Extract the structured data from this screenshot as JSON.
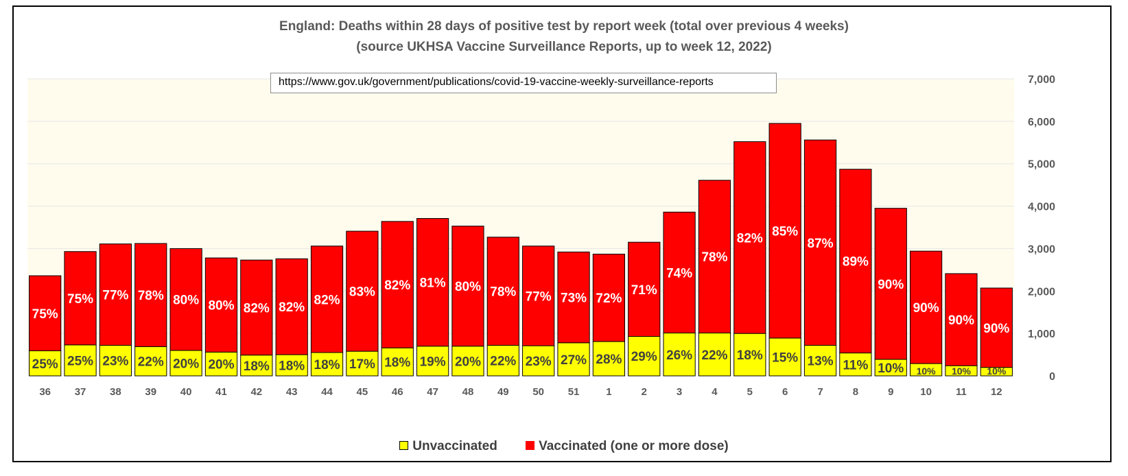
{
  "title_line1": "England: Deaths within 28 days of positive test by report week (total over previous 4 weeks)",
  "title_line2": "(source UKHSA Vaccine Surveillance Reports, up to week 12, 2022)",
  "source_url": "https://www.gov.uk/government/publications/covid-19-vaccine-weekly-surveillance-reports",
  "colors": {
    "unvaccinated": "#ffff00",
    "vaccinated": "#ff0000",
    "plot_background": "#fffcee",
    "gridline": "#e6e6e6"
  },
  "legend": {
    "unvaccinated": "Unvaccinated",
    "vaccinated": "Vaccinated (one or more dose)"
  },
  "chart_data": {
    "type": "bar",
    "stacked": true,
    "categories": [
      "36",
      "37",
      "38",
      "39",
      "40",
      "41",
      "42",
      "43",
      "44",
      "45",
      "46",
      "47",
      "48",
      "49",
      "50",
      "51",
      "1",
      "2",
      "3",
      "4",
      "5",
      "6",
      "7",
      "8",
      "9",
      "10",
      "11",
      "12"
    ],
    "series": [
      {
        "name": "Unvaccinated",
        "values": [
          590,
          730,
          720,
          690,
          600,
          560,
          490,
          500,
          550,
          580,
          660,
          700,
          700,
          720,
          710,
          780,
          810,
          930,
          1010,
          1010,
          1000,
          890,
          720,
          540,
          390,
          290,
          240,
          200
        ],
        "labels": [
          "25%",
          "25%",
          "23%",
          "22%",
          "20%",
          "20%",
          "18%",
          "18%",
          "18%",
          "17%",
          "18%",
          "19%",
          "20%",
          "22%",
          "23%",
          "27%",
          "28%",
          "29%",
          "26%",
          "22%",
          "18%",
          "15%",
          "13%",
          "11%",
          "10%",
          "10%",
          "10%",
          "10%"
        ]
      },
      {
        "name": "Vaccinated (one or more dose)",
        "values": [
          1770,
          2200,
          2390,
          2430,
          2400,
          2220,
          2240,
          2260,
          2510,
          2830,
          2980,
          3010,
          2830,
          2550,
          2350,
          2140,
          2060,
          2220,
          2850,
          3600,
          4520,
          5060,
          4840,
          4330,
          3560,
          2650,
          2170,
          1870
        ],
        "labels": [
          "75%",
          "75%",
          "77%",
          "78%",
          "80%",
          "80%",
          "82%",
          "82%",
          "82%",
          "83%",
          "82%",
          "81%",
          "80%",
          "78%",
          "77%",
          "73%",
          "72%",
          "71%",
          "74%",
          "78%",
          "82%",
          "85%",
          "87%",
          "89%",
          "90%",
          "90%",
          "90%",
          "90%"
        ]
      }
    ],
    "y_axis": {
      "position": "right",
      "min": 0,
      "max": 7000,
      "ticks": [
        "0",
        "1,000",
        "2,000",
        "3,000",
        "4,000",
        "5,000",
        "6,000",
        "7,000"
      ]
    },
    "grid": true,
    "legend_position": "bottom"
  }
}
